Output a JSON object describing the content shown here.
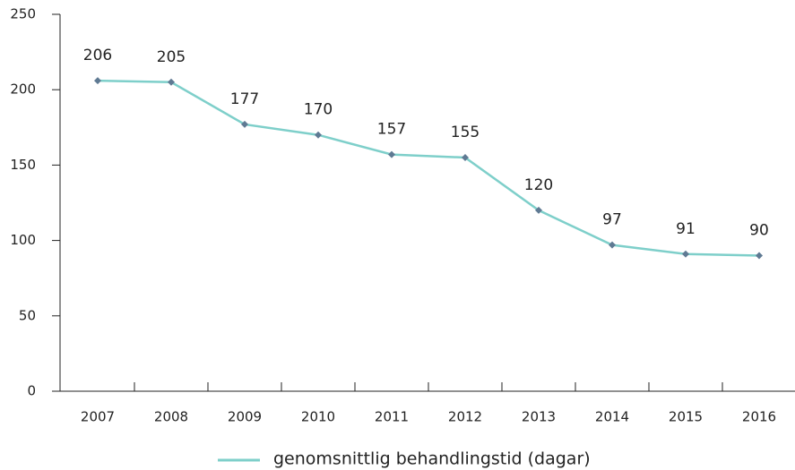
{
  "chart_data": {
    "type": "line",
    "categories": [
      "2007",
      "2008",
      "2009",
      "2010",
      "2011",
      "2012",
      "2013",
      "2014",
      "2015",
      "2016"
    ],
    "series": [
      {
        "name": "genomsnittlig behandlingstid (dagar)",
        "color": "#7ecfca",
        "marker_color": "#5f7a93",
        "values": [
          206,
          205,
          177,
          170,
          157,
          155,
          120,
          97,
          91,
          90
        ]
      }
    ],
    "ylim": [
      0,
      250
    ],
    "yticks": [
      0,
      50,
      100,
      150,
      200,
      250
    ],
    "legend": "bottom"
  }
}
